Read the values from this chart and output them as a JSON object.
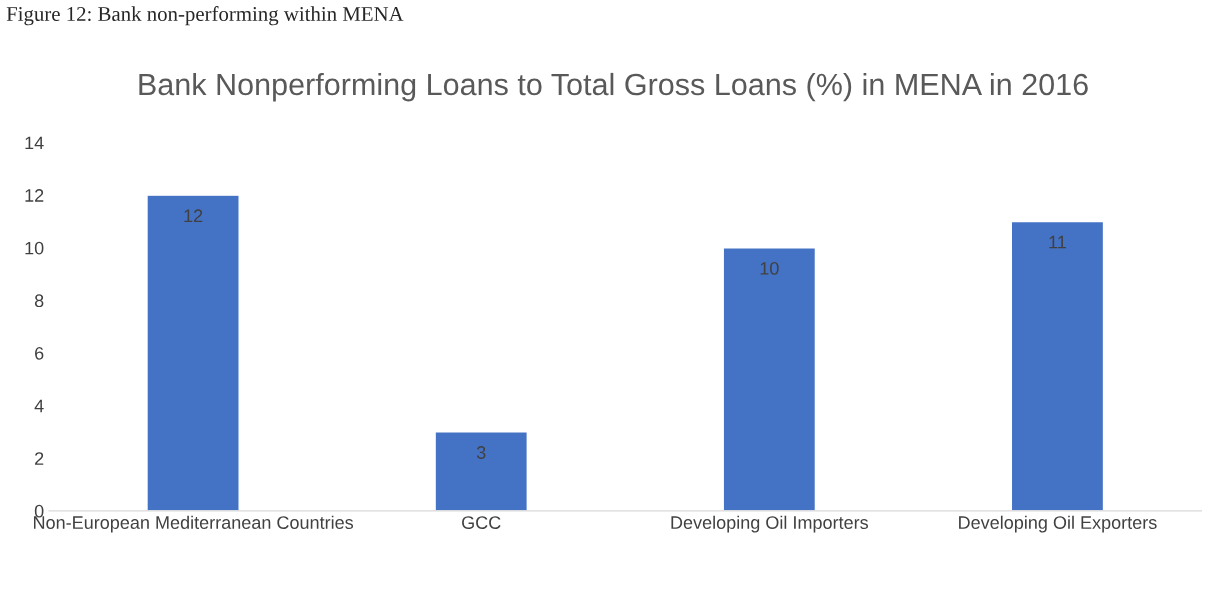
{
  "chart_data": {
    "type": "bar",
    "title": "Bank Nonperforming Loans to Total Gross Loans (%) in MENA in 2016",
    "annotations": [
      "Figure 12: Bank non-performing within MENA"
    ],
    "categories": [
      "Non-European Mediterranean Countries",
      "GCC",
      "Developing Oil Importers",
      "Developing Oil Exporters"
    ],
    "values": [
      12,
      3,
      10,
      11
    ],
    "color": "#4472c4",
    "ylim": [
      0,
      14
    ],
    "yticks": [
      0,
      2,
      4,
      6,
      8,
      10,
      12,
      14
    ],
    "grid": false,
    "data_labels": true
  }
}
